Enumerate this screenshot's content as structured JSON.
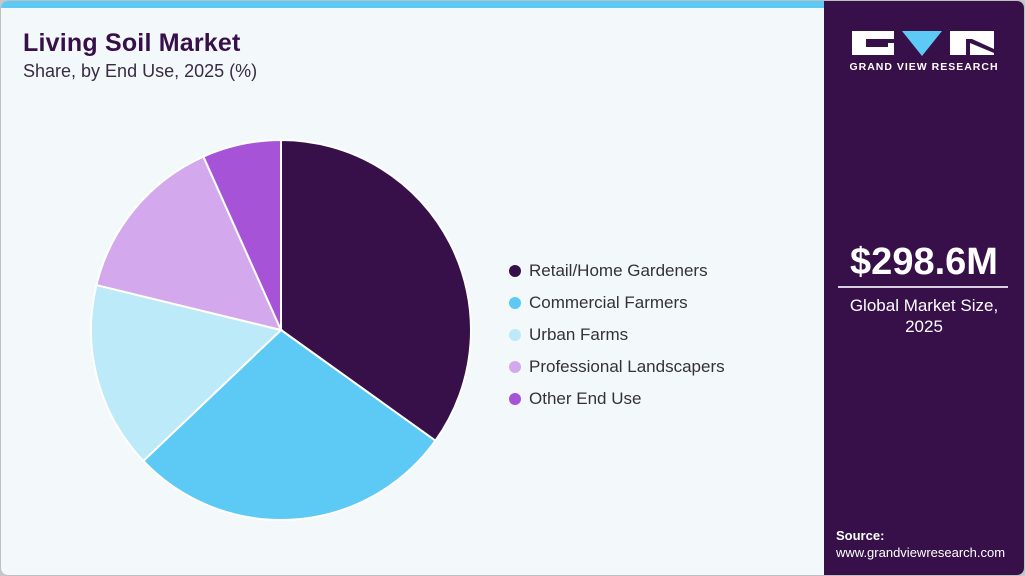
{
  "header": {
    "title": "Living Soil Market",
    "subtitle": "Share, by End Use, 2025 (%)"
  },
  "legend": [
    {
      "label": "Retail/Home Gardeners",
      "color": "#37104a"
    },
    {
      "label": "Commercial Farmers",
      "color": "#5dc9f5"
    },
    {
      "label": "Urban Farms",
      "color": "#bdeaf9"
    },
    {
      "label": "Professional Landscapers",
      "color": "#d4a8ec"
    },
    {
      "label": "Other End Use",
      "color": "#a653d8"
    }
  ],
  "sidebar": {
    "brand": "GRAND VIEW RESEARCH",
    "market_value": "$298.6M",
    "market_label_line1": "Global Market Size,",
    "market_label_line2": "2025",
    "source_label": "Source:",
    "source_url": "www.grandviewresearch.com"
  },
  "colors": {
    "brand_dark": "#37104a",
    "accent": "#5dc9f5",
    "background": "#f3f8fb"
  },
  "chart_data": {
    "type": "pie",
    "title": "Living Soil Market",
    "subtitle": "Share, by End Use, 2025 (%)",
    "categories": [
      "Retail/Home Gardeners",
      "Commercial Farmers",
      "Urban Farms",
      "Professional Landscapers",
      "Other End Use"
    ],
    "values": [
      34.9,
      28.0,
      15.9,
      14.5,
      6.7
    ],
    "colors": [
      "#37104a",
      "#5dc9f5",
      "#bdeaf9",
      "#d4a8ec",
      "#a653d8"
    ],
    "start_angle": "12 o'clock, clockwise",
    "legend_position": "right"
  }
}
